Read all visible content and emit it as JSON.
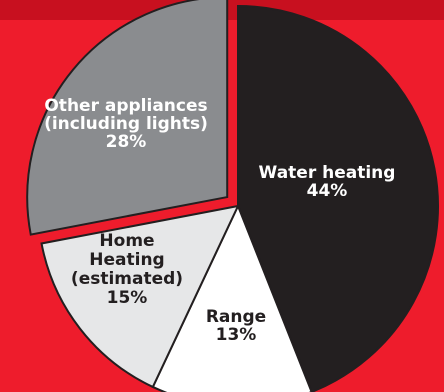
{
  "chart_data": {
    "type": "pie",
    "slices": [
      {
        "label_lines": [
          "Water heating"
        ],
        "value_text": "44%",
        "value": 44,
        "color": "#231f20",
        "text_color": "#ffffff"
      },
      {
        "label_lines": [
          "Range"
        ],
        "value_text": "13%",
        "value": 13,
        "color": "#ffffff",
        "text_color": "#231f20"
      },
      {
        "label_lines": [
          "Home",
          "Heating",
          "(estimated)"
        ],
        "value_text": "15%",
        "value": 15,
        "color": "#e6e7e8",
        "text_color": "#231f20"
      },
      {
        "label_lines": [
          "Other appliances",
          "(including lights)"
        ],
        "value_text": "28%",
        "value": 28,
        "color": "#8a8c8f",
        "text_color": "#ffffff",
        "exploded": true
      }
    ],
    "colors": {
      "background": "#ee1c2c",
      "band": "#c8101f",
      "outline": "#231f20"
    }
  }
}
